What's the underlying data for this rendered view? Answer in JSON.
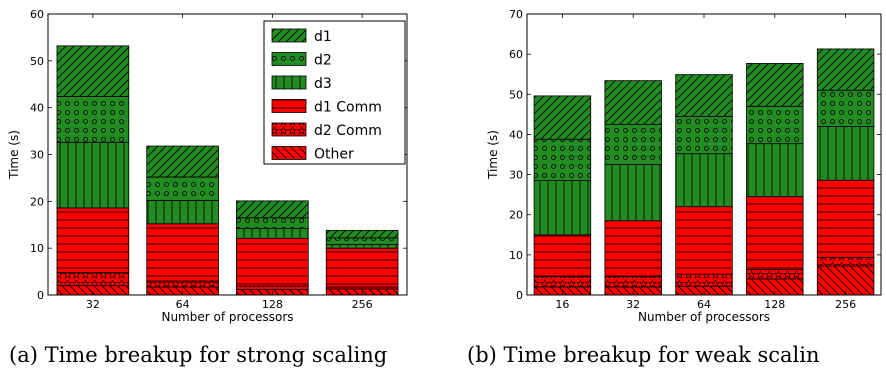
{
  "figure_captions": [
    "(a) Time breakup for strong scaling",
    "(b) Time breakup for weak scalin"
  ],
  "legend_entries": [
    "d1",
    "d2",
    "d3",
    "d1 Comm",
    "d2 Comm",
    "Other"
  ],
  "colors": {
    "d1": "#228b22",
    "d2": "#228b22",
    "d3": "#228b22",
    "d1 Comm": "#ff0000",
    "d2 Comm": "#ff0000",
    "Other": "#ff0000"
  },
  "chart_data": [
    {
      "type": "bar",
      "stacked": true,
      "xlabel": "Number of processors",
      "ylabel": "Time (s)",
      "ylim": [
        0,
        60
      ],
      "yticks": [
        0,
        10,
        20,
        30,
        40,
        50,
        60
      ],
      "legend_placement": "top-right",
      "categories": [
        "32",
        "64",
        "128",
        "256"
      ],
      "series": [
        {
          "name": "Other",
          "values": [
            2.0,
            1.7,
            1.2,
            1.3
          ]
        },
        {
          "name": "d2 Comm",
          "values": [
            2.8,
            1.3,
            0.7,
            0.4
          ]
        },
        {
          "name": "d1 Comm",
          "values": [
            13.8,
            12.2,
            10.2,
            8.3
          ]
        },
        {
          "name": "d3",
          "values": [
            14.0,
            5.0,
            2.1,
            0.8
          ]
        },
        {
          "name": "d2",
          "values": [
            9.8,
            5.0,
            2.3,
            1.4
          ]
        },
        {
          "name": "d1",
          "values": [
            10.8,
            6.6,
            3.6,
            1.6
          ]
        }
      ]
    },
    {
      "type": "bar",
      "stacked": true,
      "xlabel": "Number of processors",
      "ylabel": "Time (s)",
      "ylim": [
        0,
        70
      ],
      "yticks": [
        0,
        10,
        20,
        30,
        40,
        50,
        60,
        70
      ],
      "categories": [
        "16",
        "32",
        "64",
        "128",
        "256"
      ],
      "series": [
        {
          "name": "Other",
          "values": [
            2.0,
            2.0,
            2.2,
            4.0,
            7.2
          ]
        },
        {
          "name": "d2 Comm",
          "values": [
            2.6,
            2.6,
            3.0,
            2.4,
            2.2
          ]
        },
        {
          "name": "d1 Comm",
          "values": [
            10.4,
            13.9,
            16.8,
            18.1,
            19.2
          ]
        },
        {
          "name": "d3",
          "values": [
            13.5,
            14.0,
            13.2,
            13.2,
            13.4
          ]
        },
        {
          "name": "d2",
          "values": [
            10.3,
            10.0,
            9.3,
            9.3,
            9.0
          ]
        },
        {
          "name": "d1",
          "values": [
            10.8,
            10.9,
            10.4,
            10.7,
            10.3
          ]
        }
      ]
    }
  ]
}
